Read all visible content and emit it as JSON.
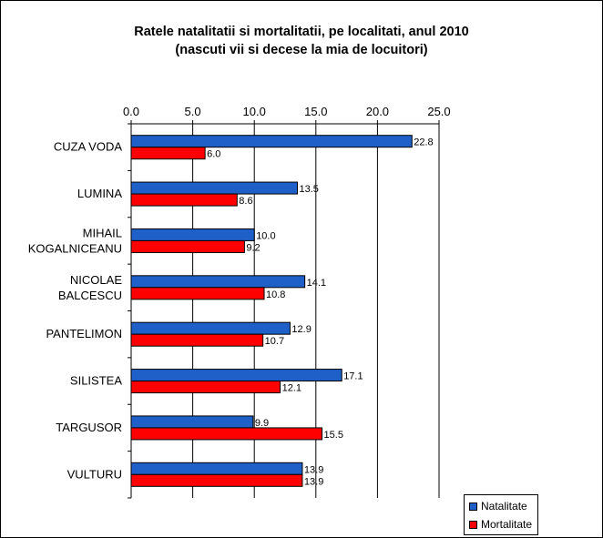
{
  "chart_data": {
    "type": "bar",
    "orientation": "horizontal",
    "title": [
      "Ratele natalitatii si mortalitatii, pe localitati, anul 2010",
      "(nascuti vii si decese la mia de locuitori)"
    ],
    "categories": [
      [
        "CUZA VODA"
      ],
      [
        "LUMINA"
      ],
      [
        "MIHAIL",
        "KOGALNICEANU"
      ],
      [
        "NICOLAE",
        "BALCESCU"
      ],
      [
        "PANTELIMON"
      ],
      [
        "SILISTEA"
      ],
      [
        "TARGUSOR"
      ],
      [
        "VULTURU"
      ]
    ],
    "series": [
      {
        "name": "Natalitate",
        "color": "#1f5fc8",
        "values": [
          22.8,
          13.5,
          10.0,
          14.1,
          12.9,
          17.1,
          9.9,
          13.9
        ],
        "labels": [
          "22.8",
          "13.5",
          "10.0",
          "14.1",
          "12.9",
          "17.1",
          "9.9",
          "13.9"
        ]
      },
      {
        "name": "Mortalitate",
        "color": "#ff0000",
        "values": [
          6.0,
          8.6,
          9.2,
          10.8,
          10.7,
          12.1,
          15.5,
          13.9
        ],
        "labels": [
          "6.0",
          "8.6",
          "9.2",
          "10.8",
          "10.7",
          "12.1",
          "15.5",
          "13.9"
        ]
      }
    ],
    "xlim": [
      0,
      25
    ],
    "xticks": [
      0,
      5,
      10,
      15,
      20,
      25
    ],
    "xtick_labels": [
      "0.0",
      "5.0",
      "10.0",
      "15.0",
      "20.0",
      "25.0"
    ],
    "axis_position": "top",
    "grid": true,
    "legend_position": "bottom-right"
  }
}
